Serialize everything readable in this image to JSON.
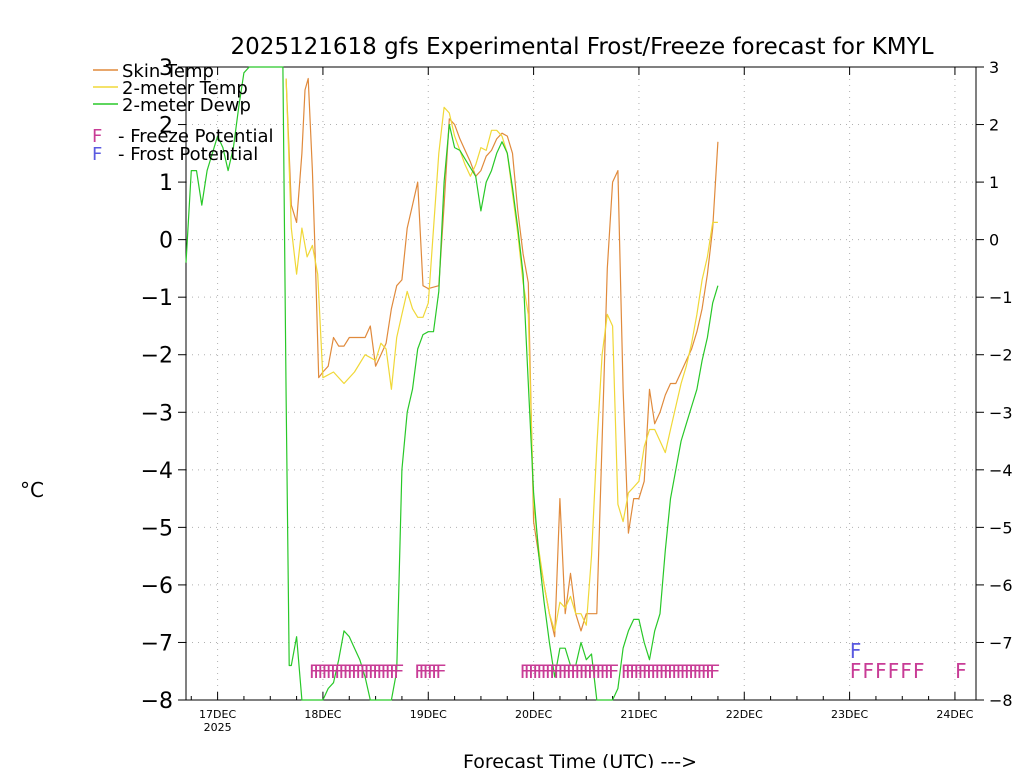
{
  "chart_data": {
    "type": "line",
    "title": "2025121618 gfs Experimental Frost/Freeze forecast for KMYL",
    "xlabel": "Forecast Time (UTC) --->",
    "ylabel": "°C",
    "ylim": [
      -8,
      3
    ],
    "yticks": [
      3,
      2,
      1,
      0,
      -1,
      -2,
      -3,
      -4,
      -5,
      -6,
      -7,
      -8
    ],
    "ytick_labels": [
      "3",
      "2",
      "1",
      "0",
      "−1",
      "−2",
      "−3",
      "−4",
      "−5",
      "−6",
      "−7",
      "−8"
    ],
    "xlim": [
      16.7,
      24.2
    ],
    "xticks": [
      {
        "value": 17,
        "label": "17DEC",
        "sublabel": "2025"
      },
      {
        "value": 18,
        "label": "18DEC",
        "sublabel": ""
      },
      {
        "value": 19,
        "label": "19DEC",
        "sublabel": ""
      },
      {
        "value": 20,
        "label": "20DEC",
        "sublabel": ""
      },
      {
        "value": 21,
        "label": "21DEC",
        "sublabel": ""
      },
      {
        "value": 22,
        "label": "22DEC",
        "sublabel": ""
      },
      {
        "value": 23,
        "label": "23DEC",
        "sublabel": ""
      },
      {
        "value": 24,
        "label": "24DEC",
        "sublabel": ""
      }
    ],
    "grid": true,
    "legend": {
      "position": "top-left",
      "entries": [
        {
          "label": "Skin Temp",
          "color": "#e08a3c"
        },
        {
          "label": "2-meter Temp",
          "color": "#f0d838"
        },
        {
          "label": "2-meter Dewp",
          "color": "#28c828"
        }
      ],
      "markers": [
        {
          "symbol": "F",
          "label": "- Freeze Potential",
          "color": "#c83c96"
        },
        {
          "symbol": "F",
          "label": "- Frost Potential",
          "color": "#5a5ae0"
        }
      ]
    },
    "series": [
      {
        "name": "Skin Temp",
        "color": "#e08a3c",
        "x": [
          17.65,
          17.7,
          17.75,
          17.8,
          17.83,
          17.86,
          17.9,
          17.93,
          17.96,
          18.0,
          18.05,
          18.1,
          18.15,
          18.2,
          18.25,
          18.3,
          18.4,
          18.45,
          18.5,
          18.55,
          18.6,
          18.65,
          18.7,
          18.75,
          18.8,
          18.85,
          18.9,
          18.95,
          19.0,
          19.1,
          19.15,
          19.2,
          19.25,
          19.3,
          19.35,
          19.4,
          19.45,
          19.5,
          19.55,
          19.6,
          19.65,
          19.7,
          19.75,
          19.8,
          19.85,
          19.9,
          19.95,
          20.0,
          20.05,
          20.1,
          20.15,
          20.2,
          20.25,
          20.3,
          20.35,
          20.4,
          20.45,
          20.5,
          20.55,
          20.6,
          20.65,
          20.7,
          20.75,
          20.8,
          20.85,
          20.9,
          20.95,
          21.0,
          21.05,
          21.1,
          21.15,
          21.2,
          21.25,
          21.3,
          21.35,
          21.4,
          21.45,
          21.5,
          21.55,
          21.6,
          21.65,
          21.7,
          21.75
        ],
        "values": [
          2.8,
          0.6,
          0.3,
          1.5,
          2.6,
          2.8,
          1.2,
          -0.5,
          -2.4,
          -2.3,
          -2.2,
          -1.7,
          -1.85,
          -1.85,
          -1.7,
          -1.7,
          -1.7,
          -1.5,
          -2.2,
          -2.0,
          -1.8,
          -1.2,
          -0.8,
          -0.7,
          0.2,
          0.6,
          1.0,
          -0.8,
          -0.85,
          -0.8,
          0.6,
          2.1,
          2.0,
          1.75,
          1.55,
          1.35,
          1.1,
          1.2,
          1.45,
          1.55,
          1.75,
          1.85,
          1.8,
          1.5,
          0.5,
          -0.25,
          -0.75,
          -4.9,
          -5.5,
          -6.0,
          -6.5,
          -6.9,
          -4.5,
          -6.5,
          -5.8,
          -6.5,
          -6.8,
          -6.5,
          -6.5,
          -6.5,
          -3.5,
          -0.5,
          1.0,
          1.2,
          -2.6,
          -5.1,
          -4.5,
          -4.5,
          -4.2,
          -2.6,
          -3.2,
          -3.0,
          -2.7,
          -2.5,
          -2.5,
          -2.3,
          -2.1,
          -1.9,
          -1.6,
          -1.2,
          -0.6,
          0.2,
          1.7
        ]
      },
      {
        "name": "2-meter Temp",
        "color": "#f0d838",
        "x": [
          17.65,
          17.7,
          17.75,
          17.8,
          17.85,
          17.9,
          17.95,
          18.0,
          18.1,
          18.2,
          18.3,
          18.4,
          18.5,
          18.55,
          18.6,
          18.65,
          18.7,
          18.75,
          18.8,
          18.85,
          18.9,
          18.95,
          19.0,
          19.1,
          19.15,
          19.2,
          19.25,
          19.3,
          19.35,
          19.4,
          19.45,
          19.5,
          19.55,
          19.6,
          19.65,
          19.7,
          19.75,
          19.8,
          19.85,
          19.9,
          19.95,
          20.0,
          20.05,
          20.1,
          20.15,
          20.2,
          20.25,
          20.3,
          20.35,
          20.4,
          20.45,
          20.5,
          20.55,
          20.6,
          20.65,
          20.7,
          20.75,
          20.8,
          20.85,
          20.9,
          20.95,
          21.0,
          21.05,
          21.1,
          21.15,
          21.2,
          21.25,
          21.3,
          21.35,
          21.4,
          21.45,
          21.5,
          21.55,
          21.6,
          21.65,
          21.7,
          21.75
        ],
        "values": [
          2.8,
          0.2,
          -0.6,
          0.2,
          -0.3,
          -0.1,
          -0.6,
          -2.4,
          -2.3,
          -2.5,
          -2.3,
          -2.0,
          -2.1,
          -1.8,
          -1.9,
          -2.6,
          -1.7,
          -1.3,
          -0.9,
          -1.2,
          -1.35,
          -1.35,
          -1.1,
          1.5,
          2.3,
          2.2,
          1.8,
          1.55,
          1.3,
          1.1,
          1.3,
          1.6,
          1.55,
          1.9,
          1.9,
          1.8,
          1.5,
          0.8,
          0.1,
          -0.75,
          -1.3,
          -4.6,
          -5.4,
          -6.0,
          -6.5,
          -6.8,
          -6.3,
          -6.4,
          -6.2,
          -6.5,
          -6.5,
          -6.7,
          -5.5,
          -3.6,
          -2.0,
          -1.3,
          -1.5,
          -4.6,
          -4.9,
          -4.4,
          -4.3,
          -4.2,
          -3.6,
          -3.3,
          -3.3,
          -3.5,
          -3.7,
          -3.3,
          -2.9,
          -2.5,
          -2.2,
          -1.8,
          -1.3,
          -0.7,
          -0.3,
          0.3,
          0.3
        ]
      },
      {
        "name": "2-meter Dewp",
        "color": "#28c828",
        "x": [
          16.7,
          16.75,
          16.8,
          16.85,
          16.9,
          17.0,
          17.05,
          17.1,
          17.15,
          17.2,
          17.25,
          17.3,
          17.35,
          17.4,
          17.45,
          17.5,
          17.55,
          17.6,
          17.62,
          17.65,
          17.68,
          17.7,
          17.75,
          17.8,
          17.85,
          17.9,
          17.95,
          18.0,
          18.05,
          18.1,
          18.15,
          18.2,
          18.25,
          18.3,
          18.35,
          18.4,
          18.45,
          18.5,
          18.55,
          18.6,
          18.65,
          18.7,
          18.75,
          18.8,
          18.85,
          18.9,
          18.95,
          19.0,
          19.05,
          19.1,
          19.15,
          19.2,
          19.25,
          19.3,
          19.35,
          19.4,
          19.45,
          19.5,
          19.55,
          19.6,
          19.65,
          19.7,
          19.75,
          19.8,
          19.85,
          19.9,
          19.95,
          20.0,
          20.05,
          20.1,
          20.15,
          20.2,
          20.25,
          20.3,
          20.35,
          20.4,
          20.45,
          20.5,
          20.55,
          20.6,
          20.65,
          20.7,
          20.75,
          20.8,
          20.85,
          20.9,
          20.95,
          21.0,
          21.05,
          21.1,
          21.15,
          21.2,
          21.25,
          21.3,
          21.35,
          21.4,
          21.45,
          21.5,
          21.55,
          21.6,
          21.65,
          21.7,
          21.75
        ],
        "values": [
          -0.4,
          1.2,
          1.2,
          0.6,
          1.2,
          1.8,
          1.6,
          1.2,
          1.6,
          2.3,
          2.9,
          3.0,
          3.0,
          3.0,
          3.0,
          3.0,
          3.0,
          3.0,
          3.0,
          -2.7,
          -7.4,
          -7.4,
          -6.9,
          -8.0,
          -8.0,
          -8.0,
          -8.0,
          -8.0,
          -7.8,
          -7.7,
          -7.3,
          -6.8,
          -6.9,
          -7.1,
          -7.3,
          -7.6,
          -8.0,
          -8.0,
          -8.0,
          -8.0,
          -8.0,
          -7.5,
          -4.0,
          -3.0,
          -2.6,
          -1.9,
          -1.65,
          -1.6,
          -1.6,
          -0.9,
          1.0,
          2.0,
          1.6,
          1.55,
          1.4,
          1.25,
          1.1,
          0.5,
          1.0,
          1.2,
          1.5,
          1.7,
          1.5,
          0.9,
          0.2,
          -0.6,
          -2.5,
          -4.4,
          -5.5,
          -6.3,
          -7.0,
          -7.6,
          -7.1,
          -7.1,
          -7.4,
          -7.4,
          -7.0,
          -7.3,
          -7.2,
          -8.0,
          -8.0,
          -8.0,
          -8.0,
          -7.8,
          -7.1,
          -6.8,
          -6.6,
          -6.6,
          -7.0,
          -7.3,
          -6.8,
          -6.5,
          -5.4,
          -4.5,
          -4.0,
          -3.5,
          -3.2,
          -2.9,
          -2.6,
          -2.1,
          -1.7,
          -1.1,
          -0.8
        ]
      }
    ],
    "freeze_markers": {
      "symbol": "F",
      "color": "#c83c96",
      "row_value": -7.5,
      "x_start": [
        17.92,
        18.92,
        19.92,
        20.88
      ],
      "x_end": [
        18.72,
        19.12,
        20.76,
        21.72
      ],
      "step": 0.04,
      "forecast_x": [
        23.0,
        23.12,
        23.24,
        23.36,
        23.48,
        23.6,
        24.0
      ]
    },
    "frost_markers": {
      "symbol": "F",
      "color": "#5a5ae0",
      "row_value": -7.15,
      "x": [
        23.0
      ]
    }
  }
}
